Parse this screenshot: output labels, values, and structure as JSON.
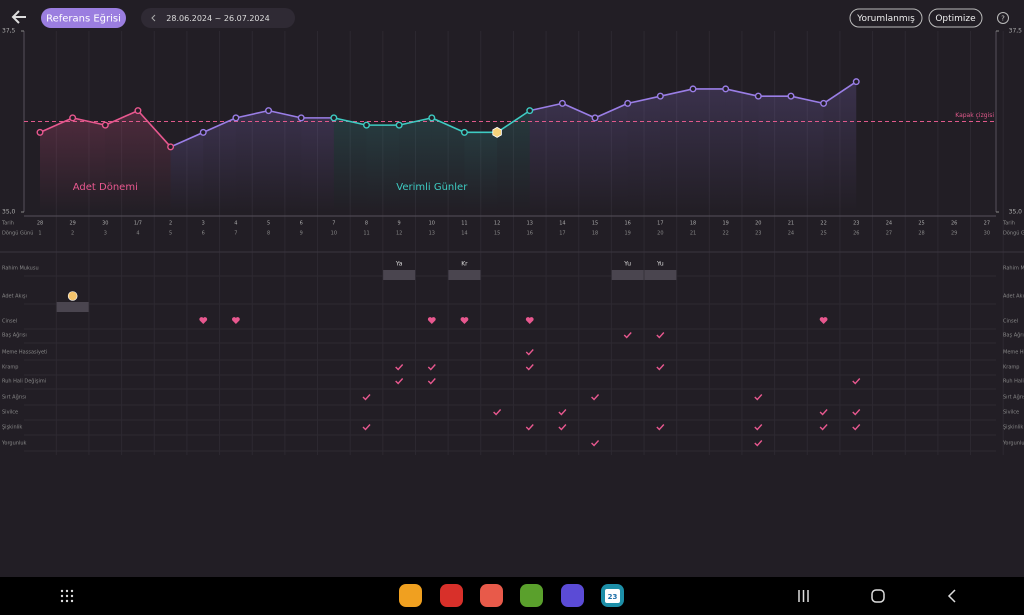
{
  "header": {
    "reference_button": "Referans Eğrisi",
    "date_range": "28.06.2024 ~ 26.07.2024",
    "interpreted_button": "Yorumlanmış",
    "optimize_button": "Optimize",
    "help": "?"
  },
  "chart_data": {
    "type": "line",
    "categories": [
      "28",
      "29",
      "30",
      "1/7",
      "2",
      "3",
      "4",
      "5",
      "6",
      "7",
      "8",
      "9",
      "10",
      "11",
      "12",
      "13",
      "14",
      "15",
      "16",
      "17",
      "18",
      "19",
      "20",
      "21",
      "22",
      "23",
      "24",
      "25",
      "26",
      "27"
    ],
    "cycle_days": [
      "1",
      "2",
      "3",
      "4",
      "5",
      "6",
      "7",
      "8",
      "9",
      "10",
      "11",
      "12",
      "13",
      "14",
      "15",
      "16",
      "17",
      "18",
      "19",
      "20",
      "21",
      "22",
      "23",
      "24",
      "25",
      "26",
      "27",
      "28",
      "29",
      "30"
    ],
    "values": [
      36.1,
      36.3,
      36.2,
      36.4,
      35.9,
      36.1,
      36.3,
      36.4,
      36.3,
      36.3,
      36.2,
      36.2,
      36.3,
      36.1,
      36.1,
      36.4,
      36.5,
      36.3,
      36.5,
      36.6,
      36.7,
      36.7,
      36.6,
      36.6,
      36.5,
      36.8,
      null,
      null,
      null,
      null
    ],
    "color": "#9a7ee6",
    "ylim": [
      35.0,
      37.5
    ],
    "yticks": [
      {
        "value": 35.0,
        "label": "35,0"
      },
      {
        "value": 37.5,
        "label": "37,5"
      }
    ],
    "coverline": {
      "value": 36.25,
      "label": "Kapak çizgisi",
      "color": "#e0598b"
    },
    "phases": [
      {
        "label": "Adet Dönemi",
        "color": "#e8588f",
        "from": "28",
        "to": "2"
      },
      {
        "label": "Verimli Günler",
        "color": "#3ecbc2",
        "from": "7",
        "to": "13"
      }
    ],
    "ovulation_day": "12"
  },
  "row_header": {
    "date": "Tarih",
    "cycle_day": "Döngü Günü"
  },
  "rows": [
    {
      "label": "Rahim Mukusu",
      "icon": "tag",
      "marks": [
        {
          "day": "9",
          "text": "Ya"
        },
        {
          "day": "11",
          "text": "Kr"
        },
        {
          "day": "16",
          "text": "Yu"
        },
        {
          "day": "17",
          "text": "Yu"
        }
      ]
    },
    {
      "label": "Adet Akışı",
      "icon": "drop",
      "marks": [
        {
          "day": "29"
        }
      ]
    },
    {
      "label": "Cinsel",
      "icon": "heart",
      "marks": [
        {
          "day": "3"
        },
        {
          "day": "4"
        },
        {
          "day": "10"
        },
        {
          "day": "11"
        },
        {
          "day": "13"
        },
        {
          "day": "22"
        }
      ]
    },
    {
      "label": "Baş Ağrısı",
      "icon": "check",
      "marks": [
        {
          "day": "16"
        },
        {
          "day": "17"
        }
      ]
    },
    {
      "label": "Meme Hassasiyeti",
      "icon": "check",
      "marks": [
        {
          "day": "13"
        }
      ]
    },
    {
      "label": "Kramp",
      "icon": "check",
      "marks": [
        {
          "day": "9"
        },
        {
          "day": "10"
        },
        {
          "day": "13"
        },
        {
          "day": "17"
        }
      ]
    },
    {
      "label": "Ruh Hali Değişimi",
      "icon": "check",
      "marks": [
        {
          "day": "9"
        },
        {
          "day": "10"
        },
        {
          "day": "23"
        }
      ]
    },
    {
      "label": "Sırt Ağrısı",
      "icon": "check",
      "marks": [
        {
          "day": "8"
        },
        {
          "day": "15"
        },
        {
          "day": "20"
        }
      ]
    },
    {
      "label": "Sivilce",
      "icon": "check",
      "marks": [
        {
          "day": "12"
        },
        {
          "day": "14"
        },
        {
          "day": "22"
        },
        {
          "day": "23"
        }
      ]
    },
    {
      "label": "Şişkinlik",
      "icon": "check",
      "marks": [
        {
          "day": "8"
        },
        {
          "day": "13"
        },
        {
          "day": "14"
        },
        {
          "day": "17"
        },
        {
          "day": "20"
        },
        {
          "day": "22"
        },
        {
          "day": "23"
        }
      ]
    },
    {
      "label": "Yorgunluk",
      "icon": "check",
      "marks": [
        {
          "day": "15"
        },
        {
          "day": "20"
        }
      ]
    }
  ],
  "taskbar": {
    "calendar_day": "23"
  }
}
